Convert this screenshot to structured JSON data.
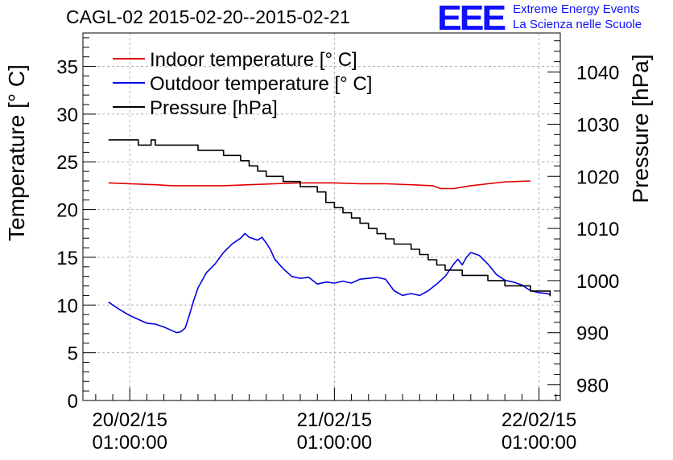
{
  "header": {
    "title": "CAGL-02 2015-02-20--2015-02-21",
    "logo_text": "EEE",
    "org_line1": "Extreme Energy Events",
    "org_line2": "La Scienza nelle Scuole"
  },
  "colors": {
    "indoor": "#e00000",
    "outdoor": "#0000e0",
    "pressure": "#000000",
    "grid": "#b0b0b0",
    "brand": "#1010ff"
  },
  "chart_data": {
    "type": "line",
    "title": "CAGL-02 2015-02-20--2015-02-21",
    "ylabel": "Temperature [° C]",
    "y2label": "Pressure [hPa]",
    "ylim": [
      0,
      38.5
    ],
    "y2lim": [
      977,
      1047.5
    ],
    "xlim_hours": [
      -5.5,
      50.5
    ],
    "x_ticks": [
      {
        "hour": 0,
        "line1": "20/02/15",
        "line2": "01:00:00"
      },
      {
        "hour": 24,
        "line1": "21/02/15",
        "line2": "01:00:00"
      },
      {
        "hour": 48,
        "line1": "22/02/15",
        "line2": "01:00:00"
      }
    ],
    "y_ticks": [
      0,
      5,
      10,
      15,
      20,
      25,
      30,
      35
    ],
    "y2_ticks": [
      980,
      990,
      1000,
      1010,
      1020,
      1030,
      1040
    ],
    "grid": true,
    "legend_position": "top-left",
    "series": [
      {
        "name": "Indoor temperature [° C]",
        "axis": "left",
        "color": "#e00000",
        "points": [
          [
            -2.5,
            22.8
          ],
          [
            0,
            22.7
          ],
          [
            3,
            22.6
          ],
          [
            5,
            22.5
          ],
          [
            8,
            22.5
          ],
          [
            11,
            22.5
          ],
          [
            14,
            22.6
          ],
          [
            17,
            22.7
          ],
          [
            20,
            22.8
          ],
          [
            24,
            22.8
          ],
          [
            27,
            22.7
          ],
          [
            30,
            22.7
          ],
          [
            33,
            22.6
          ],
          [
            35.5,
            22.5
          ],
          [
            36.5,
            22.2
          ],
          [
            38,
            22.2
          ],
          [
            40,
            22.5
          ],
          [
            42,
            22.7
          ],
          [
            44,
            22.9
          ],
          [
            47,
            23.0
          ]
        ]
      },
      {
        "name": "Outdoor temperature [° C]",
        "axis": "left",
        "color": "#0000e0",
        "points": [
          [
            -2.5,
            10.3
          ],
          [
            -1.5,
            9.7
          ],
          [
            0,
            8.9
          ],
          [
            1,
            8.5
          ],
          [
            2,
            8.1
          ],
          [
            3,
            8.0
          ],
          [
            4,
            7.7
          ],
          [
            5,
            7.3
          ],
          [
            5.5,
            7.1
          ],
          [
            6,
            7.2
          ],
          [
            6.5,
            7.6
          ],
          [
            7,
            9.0
          ],
          [
            7.5,
            10.5
          ],
          [
            8,
            11.8
          ],
          [
            8.5,
            12.6
          ],
          [
            9,
            13.4
          ],
          [
            10,
            14.3
          ],
          [
            11,
            15.5
          ],
          [
            12,
            16.4
          ],
          [
            13,
            17.0
          ],
          [
            13.5,
            17.5
          ],
          [
            14,
            17.1
          ],
          [
            15,
            16.8
          ],
          [
            15.5,
            17.1
          ],
          [
            16,
            16.5
          ],
          [
            16.5,
            15.8
          ],
          [
            17,
            14.8
          ],
          [
            18,
            13.8
          ],
          [
            19,
            13.0
          ],
          [
            20,
            12.8
          ],
          [
            21,
            12.9
          ],
          [
            22,
            12.2
          ],
          [
            23,
            12.4
          ],
          [
            24,
            12.3
          ],
          [
            25,
            12.5
          ],
          [
            26,
            12.3
          ],
          [
            27,
            12.7
          ],
          [
            28,
            12.8
          ],
          [
            29,
            12.9
          ],
          [
            30,
            12.7
          ],
          [
            31,
            11.5
          ],
          [
            32,
            11.0
          ],
          [
            33,
            11.2
          ],
          [
            34,
            11.0
          ],
          [
            35,
            11.5
          ],
          [
            36,
            12.2
          ],
          [
            37,
            13.0
          ],
          [
            38,
            14.3
          ],
          [
            38.5,
            14.8
          ],
          [
            39,
            14.2
          ],
          [
            39.5,
            15.0
          ],
          [
            40,
            15.5
          ],
          [
            41,
            15.2
          ],
          [
            42,
            14.3
          ],
          [
            43,
            13.2
          ],
          [
            44,
            12.6
          ],
          [
            45,
            12.4
          ],
          [
            46,
            12.1
          ],
          [
            47,
            11.5
          ],
          [
            48,
            11.3
          ],
          [
            49,
            11.2
          ],
          [
            49.3,
            11.1
          ]
        ]
      },
      {
        "name": "Pressure [hPa]",
        "axis": "right",
        "color": "#000000",
        "points": [
          [
            -2.5,
            1027
          ],
          [
            0,
            1027
          ],
          [
            1,
            1026
          ],
          [
            2,
            1026
          ],
          [
            2.5,
            1027
          ],
          [
            3,
            1026
          ],
          [
            5,
            1026
          ],
          [
            7,
            1026
          ],
          [
            8,
            1025
          ],
          [
            10,
            1025
          ],
          [
            11,
            1024
          ],
          [
            12,
            1024
          ],
          [
            13,
            1023
          ],
          [
            14,
            1022
          ],
          [
            15,
            1021
          ],
          [
            16,
            1020
          ],
          [
            17,
            1020
          ],
          [
            18,
            1019
          ],
          [
            19,
            1019
          ],
          [
            20,
            1018
          ],
          [
            21,
            1018
          ],
          [
            22,
            1017
          ],
          [
            23,
            1015
          ],
          [
            24,
            1014
          ],
          [
            25,
            1013
          ],
          [
            26,
            1012
          ],
          [
            27,
            1011
          ],
          [
            28,
            1010
          ],
          [
            29,
            1009
          ],
          [
            30,
            1008
          ],
          [
            31,
            1007
          ],
          [
            32,
            1007
          ],
          [
            33,
            1006
          ],
          [
            34,
            1005
          ],
          [
            35,
            1004
          ],
          [
            36,
            1003
          ],
          [
            37,
            1002
          ],
          [
            38,
            1002
          ],
          [
            39,
            1001
          ],
          [
            40,
            1001
          ],
          [
            41,
            1001
          ],
          [
            42,
            1000
          ],
          [
            43,
            1000
          ],
          [
            44,
            999
          ],
          [
            45,
            999
          ],
          [
            46,
            999
          ],
          [
            47,
            998
          ],
          [
            48,
            998
          ],
          [
            49,
            998
          ],
          [
            49.3,
            997
          ]
        ]
      }
    ]
  }
}
